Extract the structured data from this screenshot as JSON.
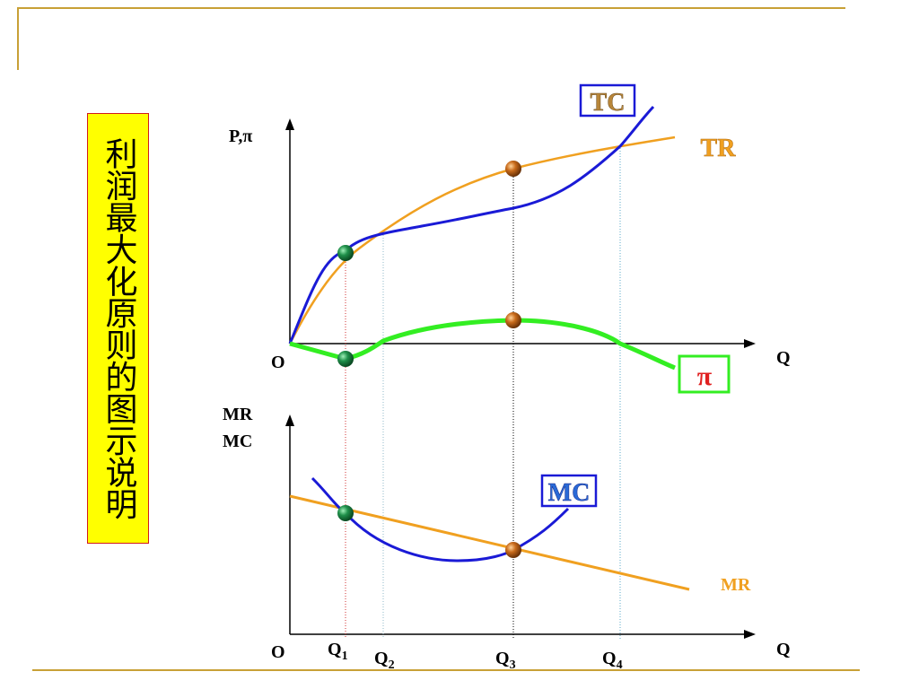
{
  "title": "利润最大化原则的图示说明",
  "top_panel": {
    "y_axis_label": "P,π",
    "origin_label": "O",
    "x_axis_label": "Q",
    "curves": {
      "tc_label": "TC",
      "tr_label": "TR",
      "pi_label": "π"
    }
  },
  "bottom_panel": {
    "y_axis_label_line1": "MR",
    "y_axis_label_line2": "MC",
    "origin_label": "O",
    "x_axis_label": "Q",
    "curves": {
      "mc_label": "MC",
      "mr_label": "MR"
    }
  },
  "quantity_markers": [
    {
      "main": "Q",
      "sub": "1"
    },
    {
      "main": "Q",
      "sub": "2"
    },
    {
      "main": "Q",
      "sub": "3"
    },
    {
      "main": "Q",
      "sub": "4"
    }
  ],
  "colors": {
    "tc": "#1a1ad6",
    "tr": "#f0a020",
    "pi": "#33ee22",
    "mc": "#1a1ad6",
    "mr": "#f0a020",
    "frame": "#c8a036",
    "title_bg": "#ffff00",
    "point_green": "#1f8f4a",
    "point_orange": "#c86a1a"
  }
}
